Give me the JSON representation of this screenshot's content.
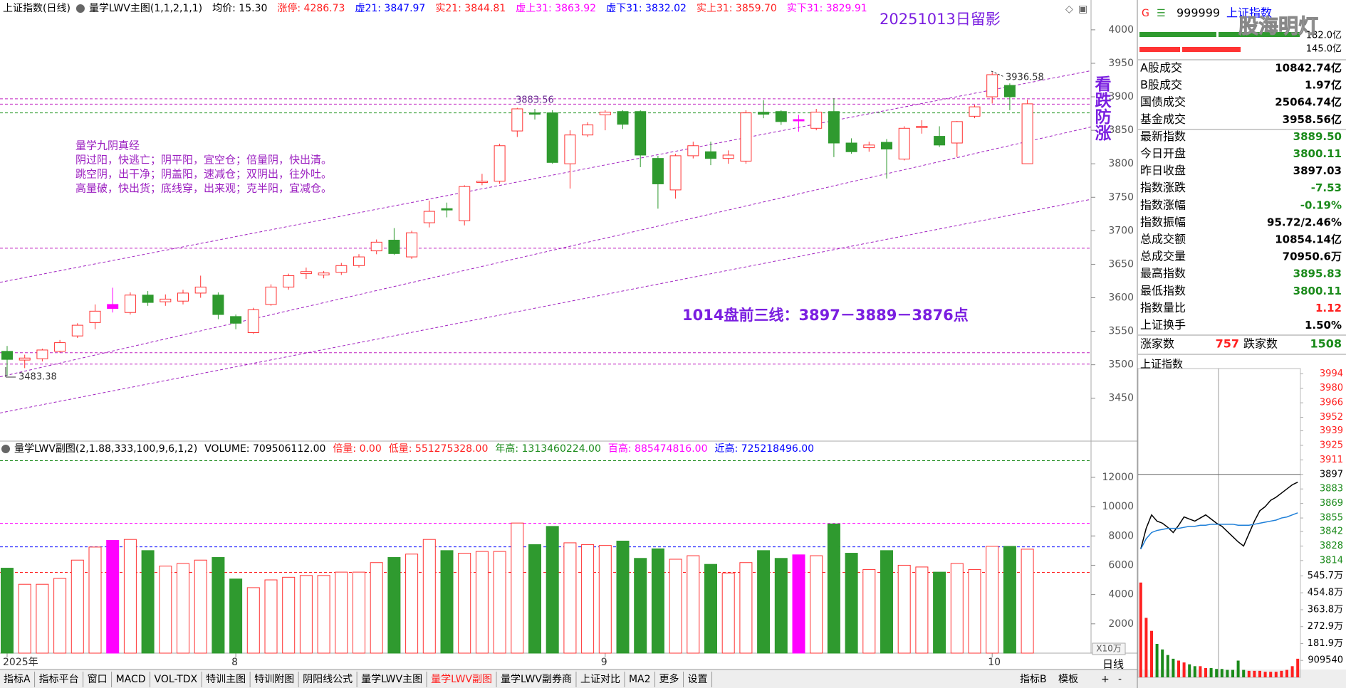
{
  "header": {
    "items": [
      {
        "text": "上证指数(日线)",
        "color": "#000000"
      },
      {
        "text": "量学LWV主图(1,1,2,1,1)",
        "color": "#000000"
      },
      {
        "text": "均价: 15.30",
        "color": "#000000"
      },
      {
        "text": "涨停: 4286.73",
        "color": "#ff2020"
      },
      {
        "text": "虚21: 3847.97",
        "color": "#0000ff"
      },
      {
        "text": "实21: 3844.81",
        "color": "#ff2020"
      },
      {
        "text": "虚上31: 3863.92",
        "color": "#ff00ff"
      },
      {
        "text": "虚下31: 3832.02",
        "color": "#0000ff"
      },
      {
        "text": "实上31: 3859.70",
        "color": "#ff2020"
      },
      {
        "text": "实下31: 3829.91",
        "color": "#ff00ff"
      }
    ]
  },
  "chart_data": [
    {
      "type": "candlestick",
      "open": [
        3520,
        3507,
        3509,
        3520,
        3543,
        3563,
        3584,
        3578,
        3604,
        3594,
        3595,
        3607,
        3604,
        3572,
        3548,
        3590,
        3616,
        3636,
        3634,
        3638,
        3648,
        3670,
        3686,
        3661,
        3712,
        3733,
        3715,
        3772,
        3774,
        3849,
        3876,
        3876,
        3800,
        3843,
        3873,
        3878,
        3878,
        3808,
        3761,
        3812,
        3818,
        3808,
        3804,
        3877,
        3878,
        3864,
        3853,
        3878,
        3831,
        3824,
        3832,
        3807,
        3854,
        3841,
        3831,
        3871,
        3900,
        3917,
        3800.11
      ],
      "high": [
        3528,
        3515,
        3524,
        3537,
        3562,
        3590,
        3615,
        3608,
        3610,
        3605,
        3612,
        3633,
        3608,
        3575,
        3585,
        3620,
        3636,
        3645,
        3640,
        3652,
        3665,
        3687,
        3704,
        3700,
        3745,
        3742,
        3768,
        3785,
        3830,
        3883.56,
        3882,
        3880,
        3850,
        3862,
        3880,
        3880,
        3880,
        3812,
        3815,
        3833,
        3833,
        3820,
        3880,
        3895,
        3880,
        3873,
        3882,
        3898,
        3838,
        3833,
        3837,
        3856,
        3865,
        3856,
        3864,
        3888,
        3936.58,
        3920,
        3895.83
      ],
      "low": [
        3483.38,
        3495,
        3505,
        3518,
        3540,
        3553,
        3578,
        3575,
        3588,
        3588,
        3590,
        3600,
        3568,
        3553,
        3546,
        3588,
        3612,
        3628,
        3629,
        3634,
        3645,
        3665,
        3664,
        3658,
        3705,
        3720,
        3708,
        3768,
        3770,
        3840,
        3866,
        3800,
        3763,
        3840,
        3850,
        3852,
        3795,
        3733,
        3748,
        3808,
        3798,
        3800,
        3800,
        3868,
        3858,
        3848,
        3850,
        3810,
        3815,
        3818,
        3778,
        3805,
        3845,
        3825,
        3810,
        3868,
        3890,
        3880,
        3800.11
      ],
      "close": [
        3508,
        3510,
        3522,
        3533,
        3559,
        3580,
        3590,
        3604,
        3593,
        3598,
        3607,
        3616,
        3575,
        3562,
        3582,
        3616,
        3633,
        3639,
        3637,
        3648,
        3661,
        3683,
        3666,
        3697,
        3729,
        3731,
        3766,
        3774,
        3827,
        3882,
        3874,
        3802,
        3843,
        3858,
        3877,
        3859,
        3813,
        3770,
        3812,
        3827,
        3808,
        3813,
        3876,
        3874,
        3863,
        3866,
        3877,
        3831,
        3818,
        3828,
        3822,
        3853,
        3856,
        3828,
        3863,
        3885,
        3933,
        3900,
        3889.5
      ],
      "ylim": [
        3386,
        4019
      ],
      "yticks": [
        4000,
        3950,
        3900,
        3850,
        3800,
        3750,
        3700,
        3650,
        3600,
        3550,
        3500,
        3450
      ],
      "hlines": [
        {
          "value": 3897,
          "color": "#c020c0"
        },
        {
          "value": 3889,
          "color": "#c020c0"
        },
        {
          "value": 3876,
          "color": "#2a9a2a"
        },
        {
          "value": 3674,
          "color": "#c020c0"
        },
        {
          "value": 3518,
          "color": "#c020c0"
        },
        {
          "value": 3501,
          "color": "#c020c0"
        }
      ],
      "trendlines": [
        {
          "from": 3623,
          "to": 3939,
          "color": "#a020c0"
        },
        {
          "from": 3482,
          "to": 3855,
          "color": "#a020c0"
        },
        {
          "from": 3428,
          "to": 3747,
          "color": "#a020c0"
        }
      ],
      "annotations": [
        {
          "text": "20251013日留影",
          "color": "#7a1ee0"
        },
        {
          "text": "3883.56",
          "color": "#6a2a90"
        },
        {
          "text": "3936.58",
          "color": "#333333"
        },
        {
          "text": "3483.38",
          "color": "#333333"
        },
        {
          "text": "1014盘前三线：3897－3889－3876点",
          "color": "#7a1ee0"
        },
        {
          "text": "看跌防涨",
          "color": "#7a1ee0"
        }
      ],
      "note_lines": [
        "量学九阴真经",
        "阴过阳，快逃亡；阴平阳，宜空仓；倍量阴，快出清。",
        "跳空阴，出干净；阴盖阳，速减仓；双阴出，往外吐。",
        "高量破，快出货；底线穿，出来观；克半阳，宜减仓。"
      ],
      "note_color": "#9b1fc0"
    },
    {
      "type": "bar",
      "header": [
        {
          "text": "量学LWV副图(2,1.88,333,100,9,6,1,2)",
          "color": "#000000"
        },
        {
          "text": "VOLUME: 709506112.00",
          "color": "#000000"
        },
        {
          "text": "倍量: 0.00",
          "color": "#ff2020"
        },
        {
          "text": "低量: 551275328.00",
          "color": "#ff2020"
        },
        {
          "text": "年高: 1313460224.00",
          "color": "#1a8a1a"
        },
        {
          "text": "百高: 885474816.00",
          "color": "#ff00ff"
        },
        {
          "text": "近高: 725218496.00",
          "color": "#0000ff"
        }
      ],
      "categories": [
        "2025年",
        null,
        null,
        null,
        null,
        null,
        null,
        null,
        null,
        null,
        null,
        null,
        null,
        "8",
        null,
        null,
        null,
        null,
        null,
        null,
        null,
        null,
        null,
        null,
        null,
        null,
        null,
        null,
        null,
        null,
        null,
        null,
        null,
        null,
        "9",
        null,
        null,
        null,
        null,
        null,
        null,
        null,
        null,
        null,
        null,
        null,
        null,
        null,
        null,
        null,
        null,
        null,
        null,
        null,
        null,
        null,
        "10",
        null,
        null
      ],
      "values": [
        5800,
        4700,
        4700,
        5100,
        6350,
        7240,
        7700,
        7760,
        7000,
        5940,
        6120,
        6350,
        6530,
        5060,
        4470,
        5000,
        5180,
        5300,
        5300,
        5530,
        5530,
        6180,
        6530,
        6760,
        7760,
        7000,
        6820,
        6940,
        6940,
        8880,
        7410,
        8650,
        7530,
        7410,
        7350,
        7650,
        6470,
        7120,
        6410,
        6650,
        6060,
        5470,
        6180,
        7000,
        6470,
        6710,
        6650,
        8820,
        6820,
        5710,
        7000,
        6000,
        5880,
        5530,
        6120,
        5710,
        7290,
        7290,
        7095.06
      ],
      "colors": [
        "#2f9a2f",
        "#ff3333",
        "#ff3333",
        "#ff3333",
        "#ff3333",
        "#ff3333",
        "#ff00ff",
        "#ff3333",
        "#2f9a2f",
        "#ff3333",
        "#ff3333",
        "#ff3333",
        "#2f9a2f",
        "#2f9a2f",
        "#ff3333",
        "#ff3333",
        "#ff3333",
        "#ff3333",
        "#ff3333",
        "#ff3333",
        "#ff3333",
        "#ff3333",
        "#2f9a2f",
        "#ff3333",
        "#ff3333",
        "#2f9a2f",
        "#ff3333",
        "#ff3333",
        "#ff3333",
        "#ff3333",
        "#2f9a2f",
        "#2f9a2f",
        "#ff3333",
        "#ff3333",
        "#ff3333",
        "#2f9a2f",
        "#2f9a2f",
        "#2f9a2f",
        "#ff3333",
        "#ff3333",
        "#2f9a2f",
        "#ff3333",
        "#ff3333",
        "#2f9a2f",
        "#2f9a2f",
        "#ff00ff",
        "#ff3333",
        "#2f9a2f",
        "#2f9a2f",
        "#ff3333",
        "#2f9a2f",
        "#ff3333",
        "#ff3333",
        "#2f9a2f",
        "#ff3333",
        "#ff3333",
        "#ff3333",
        "#2f9a2f",
        "#ff3333"
      ],
      "hollow_color": "#ff3333",
      "ylim": [
        0,
        13500
      ],
      "yticks": [
        12000,
        10000,
        8000,
        6000,
        4000,
        2000
      ],
      "unit": "X10万",
      "hlines": [
        {
          "value": 13134.60224,
          "color": "#1a8a1a"
        },
        {
          "value": 8854.74816,
          "color": "#ff00ff"
        },
        {
          "value": 7252.18496,
          "color": "#0000ff"
        },
        {
          "value": 5512.75328,
          "color": "#ff2020"
        }
      ]
    },
    {
      "type": "line",
      "series": [
        {
          "color": "#000000",
          "values": [
            3825,
            3845,
            3858,
            3852,
            3850,
            3846,
            3841,
            3848,
            3856,
            3854,
            3852,
            3855,
            3858,
            3854,
            3850,
            3847,
            3842,
            3837,
            3832,
            3828,
            3840,
            3852,
            3862,
            3866,
            3872,
            3875,
            3879,
            3883,
            3887,
            3889.5
          ]
        },
        {
          "color": "#1e7fd8",
          "values": [
            3825,
            3835,
            3841,
            3843,
            3844,
            3845,
            3845,
            3845,
            3846,
            3847,
            3847,
            3848,
            3848,
            3849,
            3849,
            3849,
            3849,
            3849,
            3848,
            3848,
            3848,
            3849,
            3850,
            3851,
            3852,
            3853,
            3855,
            3856,
            3858,
            3860
          ]
        }
      ],
      "ylim": [
        3805,
        3999
      ],
      "yticks": [
        3994,
        3980,
        3966,
        3952,
        3939,
        3925,
        3911,
        3897,
        3883,
        3869,
        3855,
        3842,
        3828,
        3814
      ],
      "baseline": 3897.03,
      "up_color": "#ff2020",
      "down_color": "#1a8a1a",
      "volume": {
        "values": [
          5100000,
          3200000,
          2500000,
          1800000,
          1500000,
          1200000,
          1000000,
          900000,
          800000,
          700000,
          600000,
          600000,
          500000,
          500000,
          450000,
          450000,
          400000,
          400000,
          900000,
          400000,
          350000,
          350000,
          350000,
          300000,
          300000,
          300000,
          350000,
          400000,
          600000,
          1000000
        ],
        "ylim": [
          0,
          5780000
        ],
        "yticks": [
          {
            "value": 5457000,
            "label": "545.7万"
          },
          {
            "value": 4548000,
            "label": "454.8万"
          },
          {
            "value": 3638000,
            "label": "363.8万"
          },
          {
            "value": 2729000,
            "label": "272.9万"
          },
          {
            "value": 1819000,
            "label": "181.9万"
          },
          909540
        ]
      }
    }
  ],
  "panel": {
    "badge": "G",
    "code": "999999",
    "name": "上证指数",
    "scales": [
      "182.0亿",
      "145.0亿"
    ],
    "rows": [
      {
        "label": "A股成交",
        "value": "10842.74亿",
        "color": "#000000"
      },
      {
        "label": "B股成交",
        "value": "1.97亿",
        "color": "#000000"
      },
      {
        "label": "国债成交",
        "value": "25064.74亿",
        "color": "#000000"
      },
      {
        "label": "基金成交",
        "value": "3958.56亿",
        "color": "#000000"
      },
      {
        "label": "最新指数",
        "value": "3889.50",
        "color": "#1a8a1a"
      },
      {
        "label": "今日开盘",
        "value": "3800.11",
        "color": "#1a8a1a"
      },
      {
        "label": "昨日收盘",
        "value": "3897.03",
        "color": "#000000"
      },
      {
        "label": "指数涨跌",
        "value": "-7.53",
        "color": "#1a8a1a"
      },
      {
        "label": "指数涨幅",
        "value": "-0.19%",
        "color": "#1a8a1a"
      },
      {
        "label": "指数振幅",
        "value": "95.72/2.46%",
        "color": "#000000"
      },
      {
        "label": "总成交额",
        "value": "10854.14亿",
        "color": "#000000"
      },
      {
        "label": "总成交量",
        "value": "70950.6万",
        "color": "#000000"
      },
      {
        "label": "最高指数",
        "value": "3895.83",
        "color": "#1a8a1a"
      },
      {
        "label": "最低指数",
        "value": "3800.11",
        "color": "#1a8a1a"
      },
      {
        "label": "指数量比",
        "value": "1.12",
        "color": "#ff2020"
      },
      {
        "label": "上证换手",
        "value": "1.50%",
        "color": "#000000"
      }
    ],
    "breadth": [
      {
        "text": "涨家数",
        "color": "#000000"
      },
      {
        "text": "757",
        "color": "#ff2020"
      },
      {
        "text": "跌家数",
        "color": "#000000"
      },
      {
        "text": "1508",
        "color": "#1a8a1a"
      }
    ],
    "mini_title": "上证指数"
  },
  "tabs": {
    "items": [
      "指标A",
      "指标平台",
      "窗口",
      "MACD",
      "VOL-TDX",
      "特训主图",
      "特训附图",
      "阴阳线公式",
      "量学LWV主图",
      "量学LWV副图",
      "量学LWV副券商",
      "上证对比",
      "MA2",
      "更多",
      "设置"
    ],
    "active": 9,
    "active_color": "#ff2020",
    "right": [
      "指标B",
      "模板",
      "+",
      "-"
    ],
    "period": "日线"
  },
  "watermark": "股海明灯"
}
